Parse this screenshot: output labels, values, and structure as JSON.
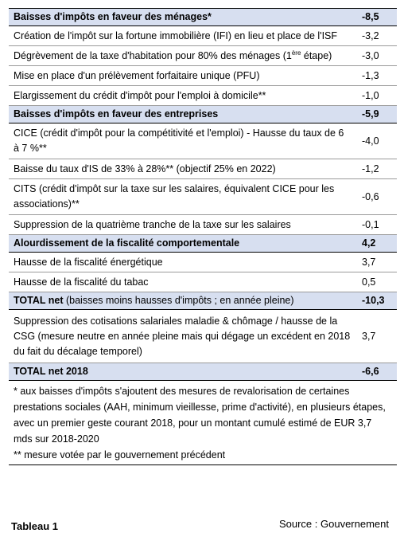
{
  "rows": {
    "r1": {
      "label": "Baisses d'impôts en faveur des ménages*",
      "value": "-8,5"
    },
    "r2": {
      "label": "Création de l'impôt sur la fortune immobilière (IFI) en lieu et place de l'ISF",
      "value": "-3,2"
    },
    "r3": {
      "label_pre": "Dégrèvement de la taxe d'habitation pour 80% des ménages (1",
      "label_sup": "ère",
      "label_post": " étape)",
      "value": "-3,0"
    },
    "r4": {
      "label": "Mise en place d'un prélèvement forfaitaire unique (PFU)",
      "value": "-1,3"
    },
    "r5": {
      "label": "Elargissement du crédit d'impôt pour l'emploi à domicile**",
      "value": "-1,0"
    },
    "r6": {
      "label": "Baisses d'impôts en faveur des entreprises",
      "value": "-5,9"
    },
    "r7": {
      "label": "CICE (crédit d'impôt pour la compétitivité et l'emploi) - Hausse du taux de 6 à 7 %**",
      "value": "-4,0"
    },
    "r8": {
      "label": "Baisse du taux d'IS de 33% à 28%** (objectif 25% en 2022)",
      "value": "-1,2"
    },
    "r9": {
      "label": "CITS (crédit d'impôt sur la taxe sur les salaires, équivalent CICE pour les associations)**",
      "value": "-0,6"
    },
    "r10": {
      "label": "Suppression de la quatrième tranche de la taxe sur les salaires",
      "value": "-0,1"
    },
    "r11": {
      "label": "Alourdissement de la fiscalité comportementale",
      "value": "4,2"
    },
    "r12": {
      "label": "Hausse de la fiscalité énergétique",
      "value": "3,7"
    },
    "r13": {
      "label": "Hausse de la fiscalité du tabac",
      "value": "0,5"
    },
    "r14": {
      "label_bold": "TOTAL net",
      "label_rest": " (baisses moins hausses d'impôts ; en année pleine)",
      "value": "-10,3"
    },
    "r15": {
      "label": "Suppression des cotisations salariales maladie & chômage / hausse de la CSG (mesure neutre en année pleine mais qui dégage un excédent en 2018 du fait du décalage temporel)",
      "value": "3,7"
    },
    "r16": {
      "label": "TOTAL net 2018",
      "value": "-6,6"
    }
  },
  "footnotes": {
    "note1": "* aux baisses d'impôts s'ajoutent des mesures de revalorisation de certaines prestations sociales (AAH, minimum vieillesse, prime d'activité), en plusieurs étapes, avec un premier geste courant 2018, pour un montant cumulé estimé de EUR 3,7 mds sur 2018-2020",
    "note2": "** mesure votée par le gouvernement précédent"
  },
  "caption": {
    "tableau": "Tableau 1",
    "source": "Source : Gouvernement"
  },
  "colors": {
    "header_bg": "#d7dff0",
    "border": "#9a9a9a"
  }
}
